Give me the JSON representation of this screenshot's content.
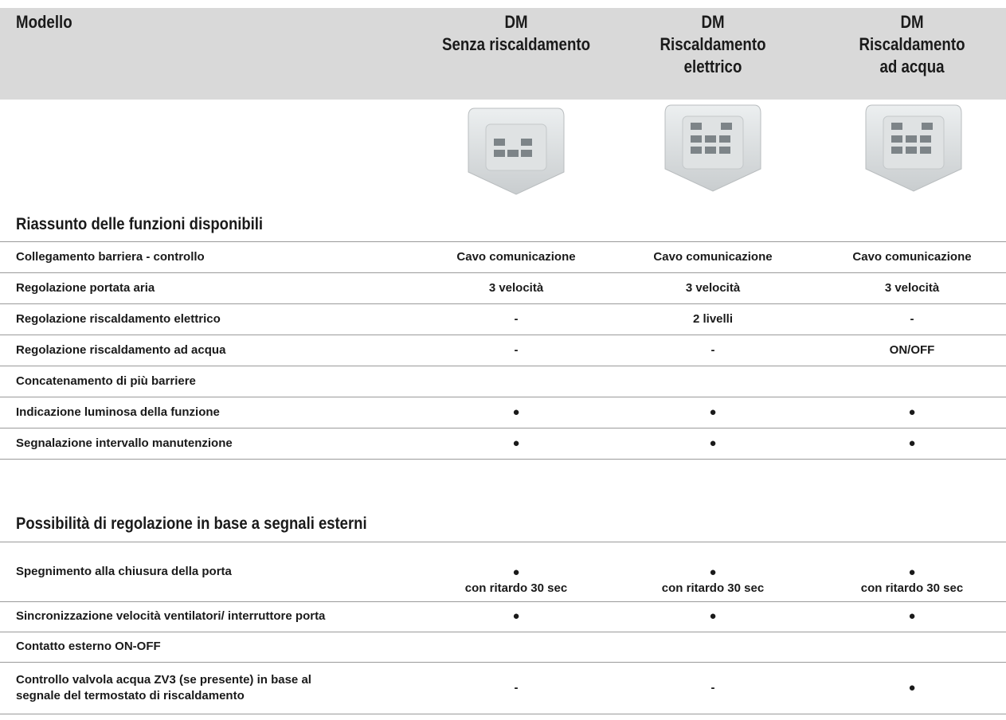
{
  "header": {
    "columns": [
      [
        "Modello"
      ],
      [
        "DM",
        "Senza riscaldamento"
      ],
      [
        "DM",
        "Riscaldamento",
        "elettrico"
      ],
      [
        "DM",
        "Riscaldamento",
        "ad acqua"
      ]
    ]
  },
  "sections": [
    {
      "title": "Riassunto delle funzioni disponibili",
      "rows": [
        {
          "label": [
            "Collegamento barriera - controllo"
          ],
          "values": [
            [
              "Cavo comunicazione"
            ],
            [
              "Cavo comunicazione"
            ],
            [
              "Cavo comunicazione"
            ]
          ]
        },
        {
          "label": [
            "Regolazione portata aria"
          ],
          "values": [
            [
              "3 velocità"
            ],
            [
              "3 velocità"
            ],
            [
              "3 velocità"
            ]
          ]
        },
        {
          "label": [
            "Regolazione riscaldamento elettrico"
          ],
          "values": [
            [
              "-"
            ],
            [
              "2 livelli"
            ],
            [
              "-"
            ]
          ]
        },
        {
          "label": [
            "Regolazione riscaldamento ad acqua"
          ],
          "values": [
            [
              "-"
            ],
            [
              "-"
            ],
            [
              "ON/OFF"
            ]
          ]
        },
        {
          "label": [
            "Concatenamento di più barriere"
          ]
        },
        {
          "label": [
            "Indicazione luminosa della funzione"
          ],
          "values": [
            [
              "●"
            ],
            [
              "●"
            ],
            [
              "●"
            ]
          ]
        },
        {
          "label": [
            "Segnalazione intervallo manutenzione"
          ],
          "values": [
            [
              "●"
            ],
            [
              "●"
            ],
            [
              "●"
            ]
          ]
        }
      ]
    },
    {
      "title": "Possibilità di regolazione in base a segnali esterni",
      "rows": [
        {
          "label": [
            "Spegnimento alla chiusura della porta"
          ],
          "values": [
            [
              "●",
              "con ritardo 30 sec"
            ],
            [
              "●",
              "con ritardo 30 sec"
            ],
            [
              "●",
              "con ritardo 30 sec"
            ]
          ]
        },
        {
          "label": [
            "Sincronizzazione velocità ventilatori/ interruttore porta"
          ],
          "values": [
            [
              "●"
            ],
            [
              "●"
            ],
            [
              "●"
            ]
          ]
        },
        {
          "label": [
            "Contatto esterno ON-OFF"
          ]
        },
        {
          "label": [
            "Controllo valvola acqua ZV3 (se presente) in base al",
            "segnale del termostato di riscaldamento"
          ],
          "values": [
            [
              "-"
            ],
            [
              "-"
            ],
            [
              "●"
            ]
          ]
        }
      ]
    }
  ]
}
